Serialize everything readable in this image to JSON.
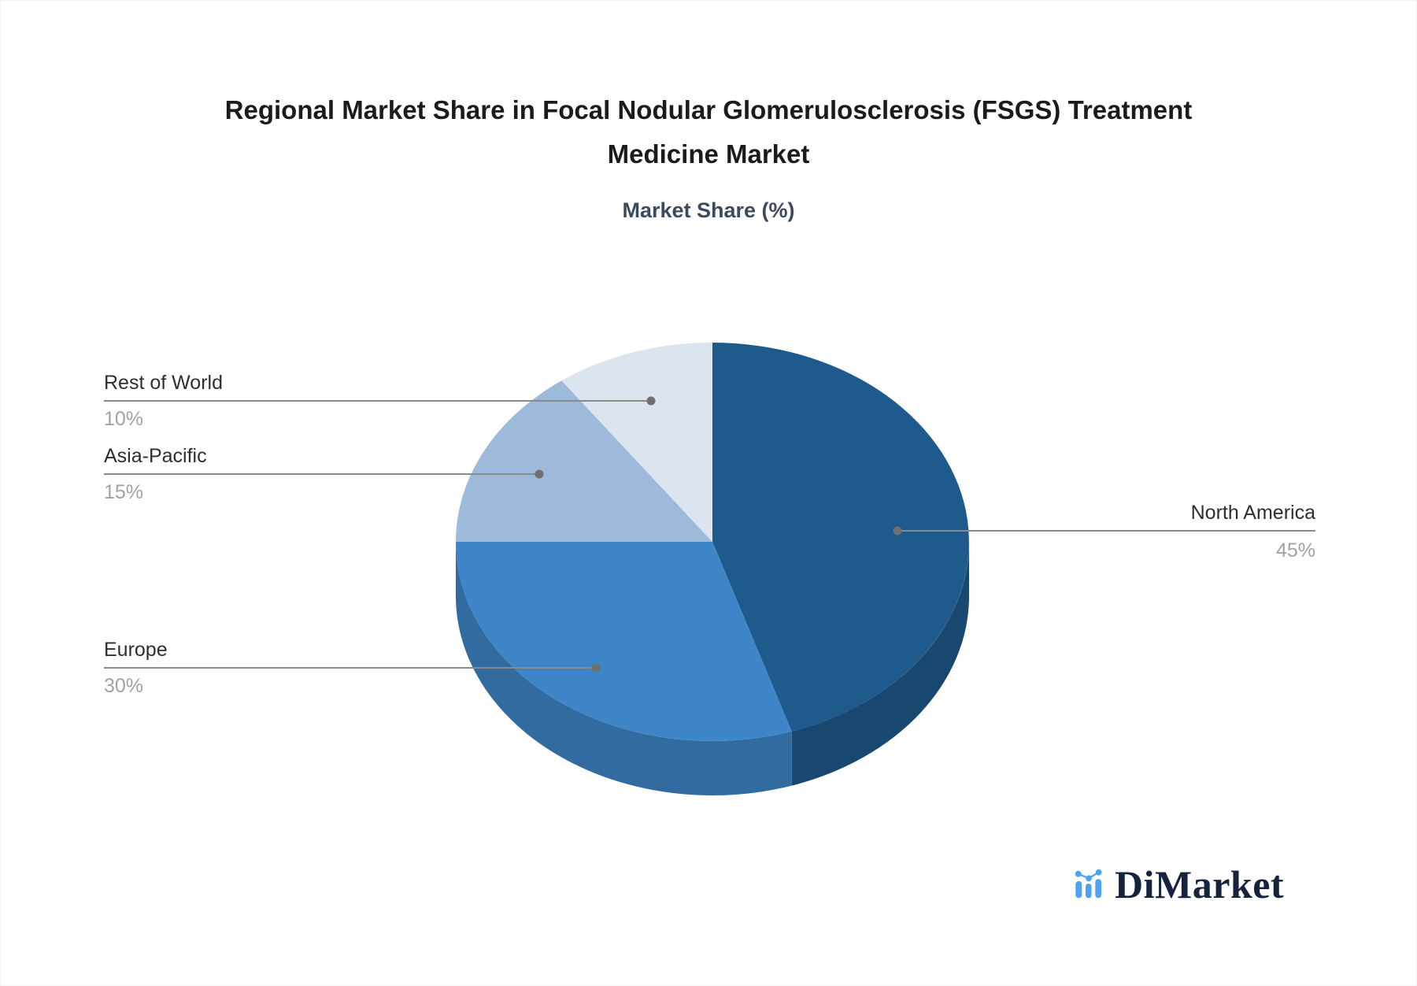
{
  "page": {
    "background": "#FFFFFF",
    "border_color": "#F2F3F6"
  },
  "header": {
    "title": "Regional Market Share in Focal Nodular Glomerulosclerosis (FSGS) Treatment Medicine Market",
    "subtitle": "Market Share (%)"
  },
  "chart_data": {
    "type": "pie",
    "style": "3d",
    "title": "Regional Market Share in Focal Nodular Glomerulosclerosis (FSGS) Treatment Medicine Market",
    "subtitle": "Market Share (%)",
    "unit": "%",
    "start_angle": "12-o-clock",
    "direction": "clockwise",
    "legend_position": "callout-labels",
    "categories": [
      "North America",
      "Europe",
      "Asia-Pacific",
      "Rest of World"
    ],
    "values": [
      45,
      30,
      15,
      10
    ],
    "slices": [
      {
        "label": "North America",
        "value_label": "45%",
        "percent": 45,
        "color": "#1E5A8C",
        "callout_side": "right"
      },
      {
        "label": "Europe",
        "value_label": "30%",
        "percent": 30,
        "color": "#3E86C8",
        "callout_side": "left"
      },
      {
        "label": "Asia-Pacific",
        "value_label": "15%",
        "percent": 15,
        "color": "#9DBADB",
        "callout_side": "left"
      },
      {
        "label": "Rest of World",
        "value_label": "10%",
        "percent": 10,
        "color": "#DCE4EF",
        "callout_side": "left"
      }
    ]
  },
  "callout_style": {
    "line_color": "#8A8A8A",
    "dot_color": "#707070",
    "label_color": "#2E2E2E",
    "value_color": "#9EA3A8"
  },
  "logo": {
    "text": "DiMarket",
    "icon": "mini-bar-line-chart-icon",
    "icon_color": "#4DA2F2",
    "text_color": "#16233E"
  }
}
